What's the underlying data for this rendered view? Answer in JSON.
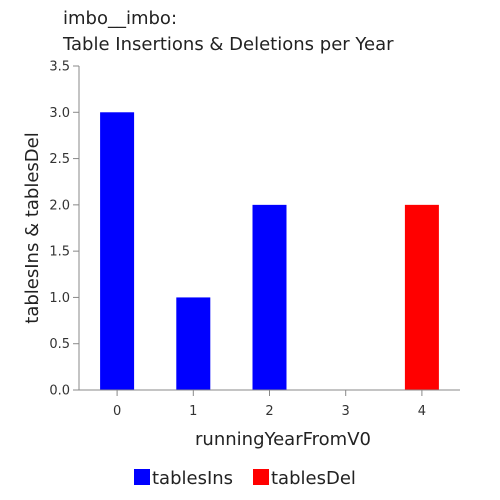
{
  "chart_data": {
    "type": "bar",
    "title_line1": "imbo__imbo:",
    "title_line2": "Table Insertions & Deletions per Year",
    "xlabel": "runningYearFromV0",
    "ylabel": "tablesIns & tablesDel",
    "categories": [
      "0",
      "1",
      "2",
      "3",
      "4"
    ],
    "ylim": [
      0,
      3.5
    ],
    "yticks": [
      "0.0",
      "0.5",
      "1.0",
      "1.5",
      "2.0",
      "2.5",
      "3.0",
      "3.5"
    ],
    "grid": false,
    "legend_position": "bottom",
    "series": [
      {
        "name": "tablesIns",
        "color": "#0000ff",
        "values": [
          3,
          1,
          2,
          0,
          0
        ]
      },
      {
        "name": "tablesDel",
        "color": "#ff0000",
        "values": [
          0,
          0,
          0,
          0,
          2
        ]
      }
    ]
  }
}
